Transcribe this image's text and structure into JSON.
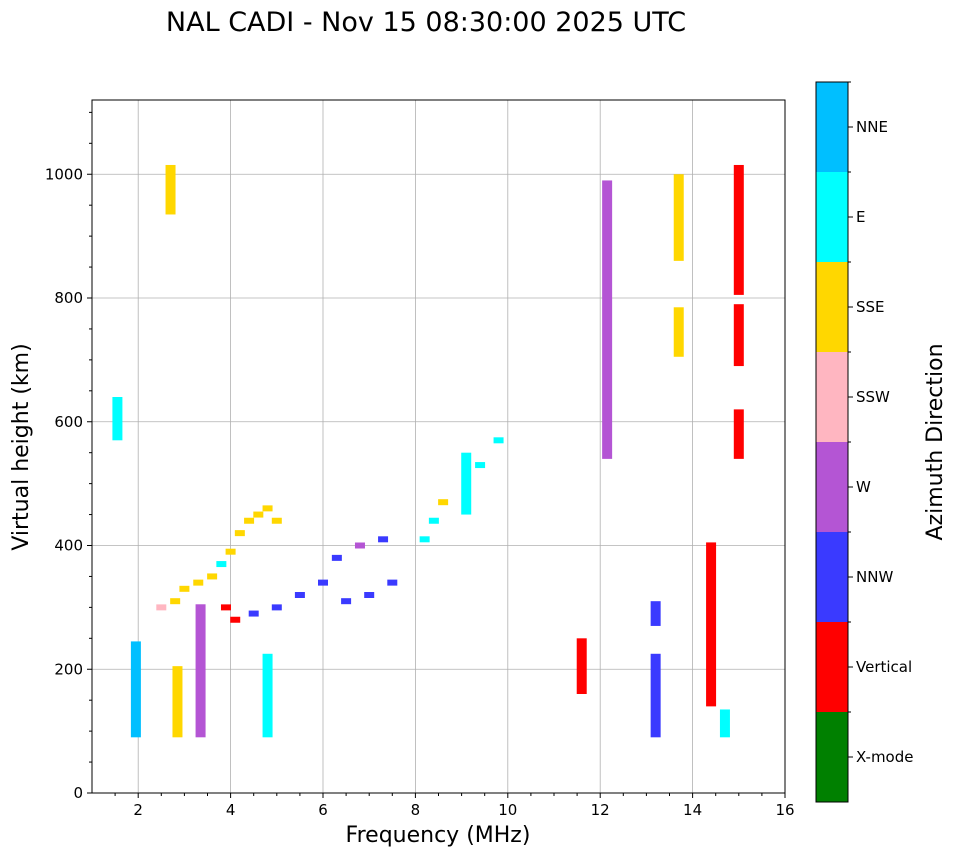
{
  "chart_data": {
    "type": "scatter",
    "title": "NAL CADI - Nov 15 08:30:00 2025 UTC",
    "xlabel": "Frequency (MHz)",
    "ylabel": "Virtual height (km)",
    "xlim": [
      1,
      16
    ],
    "ylim": [
      0,
      1120
    ],
    "xticks": [
      "2",
      "4",
      "6",
      "8",
      "10",
      "12",
      "14",
      "16"
    ],
    "yticks": [
      "0",
      "200",
      "400",
      "600",
      "800",
      "1000"
    ],
    "grid": true,
    "colorbar": {
      "label": "Azimuth Direction",
      "categories": [
        {
          "name": "X-mode",
          "color": "#008000"
        },
        {
          "name": "Vertical",
          "color": "#ff0000"
        },
        {
          "name": "NNW",
          "color": "#3a3aff"
        },
        {
          "name": "W",
          "color": "#b455d4"
        },
        {
          "name": "SSW",
          "color": "#ffb6c1"
        },
        {
          "name": "SSE",
          "color": "#ffd700"
        },
        {
          "name": "E",
          "color": "#00ffff"
        },
        {
          "name": "NNE",
          "color": "#00bfff"
        }
      ]
    },
    "rects": [
      {
        "f": 15.0,
        "h0": 805,
        "h1": 1015,
        "c": "Vertical"
      },
      {
        "f": 15.0,
        "h0": 540,
        "h1": 620,
        "c": "Vertical"
      },
      {
        "f": 15.0,
        "h0": 690,
        "h1": 790,
        "c": "Vertical"
      },
      {
        "f": 14.4,
        "h0": 140,
        "h1": 405,
        "c": "Vertical"
      },
      {
        "f": 13.2,
        "h0": 90,
        "h1": 225,
        "c": "NNW"
      },
      {
        "f": 13.2,
        "h0": 270,
        "h1": 310,
        "c": "NNW"
      },
      {
        "f": 13.7,
        "h0": 860,
        "h1": 1000,
        "c": "SSE"
      },
      {
        "f": 13.7,
        "h0": 705,
        "h1": 785,
        "c": "SSE"
      },
      {
        "f": 12.15,
        "h0": 540,
        "h1": 990,
        "c": "W"
      },
      {
        "f": 11.6,
        "h0": 160,
        "h1": 250,
        "c": "Vertical"
      },
      {
        "f": 14.7,
        "h0": 90,
        "h1": 135,
        "c": "E"
      },
      {
        "f": 9.1,
        "h0": 450,
        "h1": 550,
        "c": "E"
      },
      {
        "f": 4.8,
        "h0": 90,
        "h1": 225,
        "c": "E"
      },
      {
        "f": 3.35,
        "h0": 90,
        "h1": 305,
        "c": "W"
      },
      {
        "f": 2.85,
        "h0": 90,
        "h1": 205,
        "c": "SSE"
      },
      {
        "f": 2.7,
        "h0": 935,
        "h1": 1015,
        "c": "SSE"
      },
      {
        "f": 1.95,
        "h0": 90,
        "h1": 245,
        "c": "NNE"
      },
      {
        "f": 1.55,
        "h0": 570,
        "h1": 640,
        "c": "E"
      }
    ],
    "points": [
      {
        "f": 2.5,
        "h": 300,
        "c": "SSW"
      },
      {
        "f": 2.8,
        "h": 310,
        "c": "SSE"
      },
      {
        "f": 3.0,
        "h": 330,
        "c": "SSE"
      },
      {
        "f": 3.3,
        "h": 340,
        "c": "SSE"
      },
      {
        "f": 3.6,
        "h": 350,
        "c": "SSE"
      },
      {
        "f": 3.8,
        "h": 370,
        "c": "E"
      },
      {
        "f": 4.0,
        "h": 390,
        "c": "SSE"
      },
      {
        "f": 4.2,
        "h": 420,
        "c": "SSE"
      },
      {
        "f": 4.4,
        "h": 440,
        "c": "SSE"
      },
      {
        "f": 4.6,
        "h": 450,
        "c": "SSE"
      },
      {
        "f": 4.8,
        "h": 460,
        "c": "SSE"
      },
      {
        "f": 5.0,
        "h": 440,
        "c": "SSE"
      },
      {
        "f": 3.9,
        "h": 300,
        "c": "Vertical"
      },
      {
        "f": 4.1,
        "h": 280,
        "c": "Vertical"
      },
      {
        "f": 4.5,
        "h": 290,
        "c": "NNW"
      },
      {
        "f": 5.0,
        "h": 300,
        "c": "NNW"
      },
      {
        "f": 5.5,
        "h": 320,
        "c": "NNW"
      },
      {
        "f": 6.0,
        "h": 340,
        "c": "NNW"
      },
      {
        "f": 6.5,
        "h": 310,
        "c": "NNW"
      },
      {
        "f": 7.0,
        "h": 320,
        "c": "NNW"
      },
      {
        "f": 7.5,
        "h": 340,
        "c": "NNW"
      },
      {
        "f": 6.3,
        "h": 380,
        "c": "NNW"
      },
      {
        "f": 6.8,
        "h": 400,
        "c": "W"
      },
      {
        "f": 7.3,
        "h": 410,
        "c": "NNW"
      },
      {
        "f": 8.2,
        "h": 410,
        "c": "E"
      },
      {
        "f": 8.4,
        "h": 440,
        "c": "E"
      },
      {
        "f": 8.6,
        "h": 470,
        "c": "SSE"
      },
      {
        "f": 9.4,
        "h": 530,
        "c": "E"
      },
      {
        "f": 9.8,
        "h": 570,
        "c": "E"
      }
    ]
  }
}
